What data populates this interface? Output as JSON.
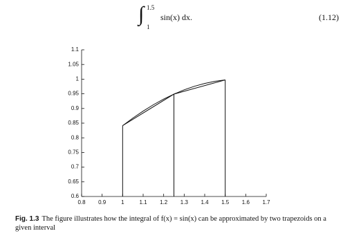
{
  "equation": {
    "upper": "1.5",
    "lower": "1",
    "body": "sin(x) dx.",
    "number": "(1.12)"
  },
  "chart_data": {
    "type": "line",
    "xlim": [
      0.8,
      1.7
    ],
    "xticks": [
      0.8,
      0.9,
      1,
      1.1,
      1.2,
      1.3,
      1.4,
      1.5,
      1.6,
      1.7
    ],
    "ylim": [
      0.6,
      1.1
    ],
    "yticks": [
      0.6,
      0.65,
      0.7,
      0.75,
      0.8,
      0.85,
      0.9,
      0.95,
      1,
      1.05,
      1.1
    ],
    "color": "#111111",
    "series": [
      {
        "x": [
          1.0,
          1.05,
          1.1,
          1.15,
          1.2,
          1.25,
          1.3,
          1.35,
          1.4,
          1.45,
          1.5
        ],
        "values": [
          0.8415,
          0.8674,
          0.8912,
          0.9128,
          0.932,
          0.949,
          0.9636,
          0.9757,
          0.9854,
          0.9927,
          0.9975
        ]
      },
      {
        "x": [
          1,
          1.25,
          1.5
        ],
        "values": [
          0.8415,
          0.949,
          0.9975
        ],
        "verticals": true
      }
    ]
  },
  "caption": {
    "label": "Fig. 1.3",
    "text": "The figure illustrates how the integral of f(x) = sin(x) can be approximated by two trapezoids on a given interval"
  }
}
